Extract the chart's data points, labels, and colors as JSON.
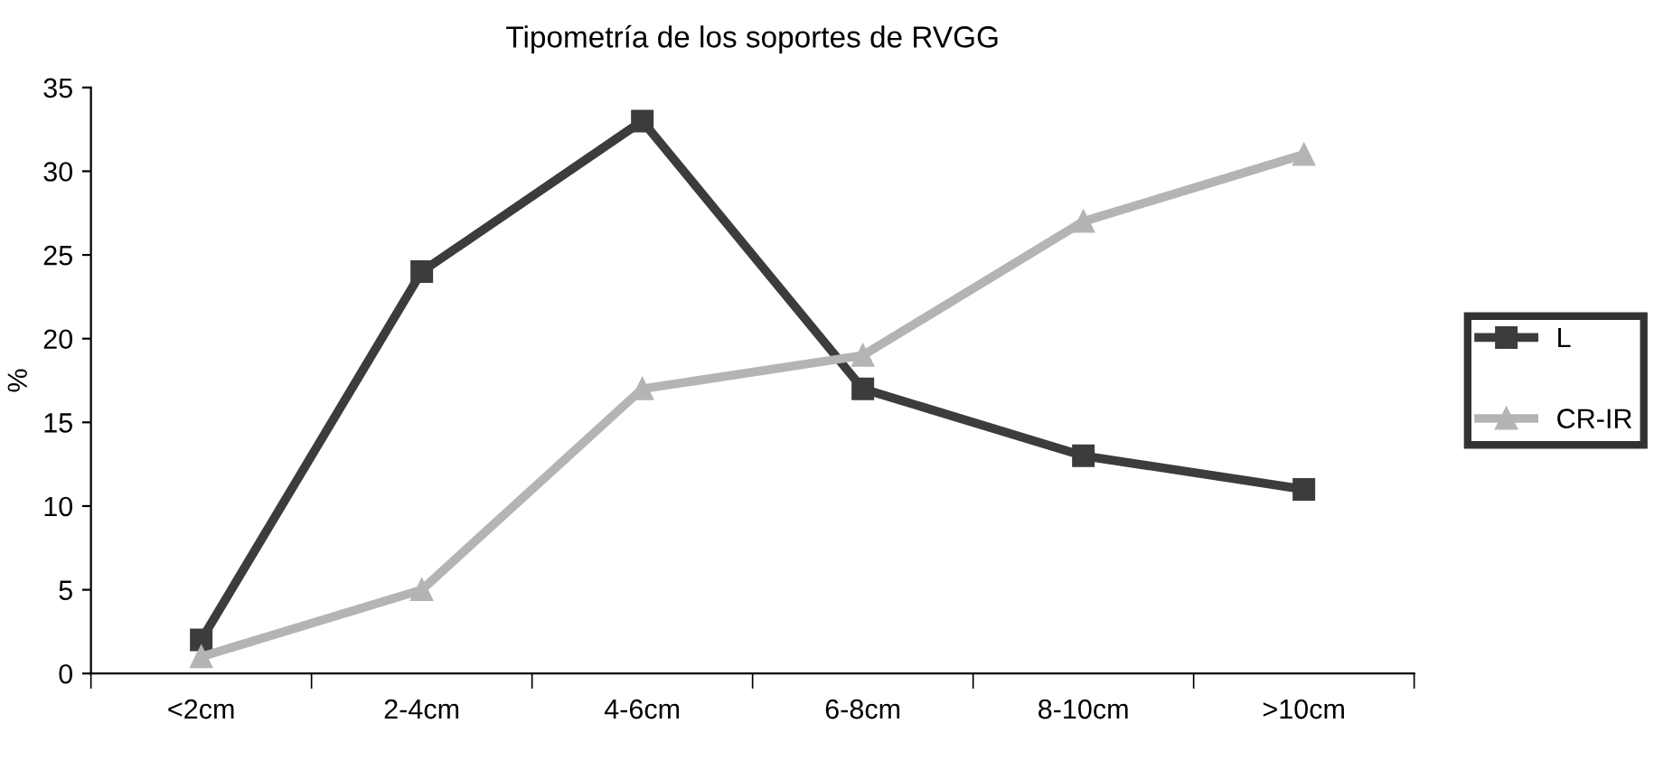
{
  "chart_data": {
    "type": "line",
    "title": "Tipometría de los soportes de RVGG",
    "ylabel": "%",
    "categories": [
      "<2cm",
      "2-4cm",
      "4-6cm",
      "6-8cm",
      "8-10cm",
      ">10cm"
    ],
    "series": [
      {
        "name": "L",
        "color": "#3c3c3c",
        "marker": "square",
        "values": [
          2,
          24,
          33,
          17,
          13,
          11
        ]
      },
      {
        "name": "CR-IR",
        "color": "#b4b4b4",
        "marker": "triangle",
        "values": [
          1,
          5,
          17,
          19,
          27,
          31
        ]
      }
    ],
    "ylim": [
      0,
      35
    ],
    "yticks": [
      0,
      5,
      10,
      15,
      20,
      25,
      30,
      35
    ],
    "grid": false,
    "legend": "right",
    "line_style": "solid"
  }
}
